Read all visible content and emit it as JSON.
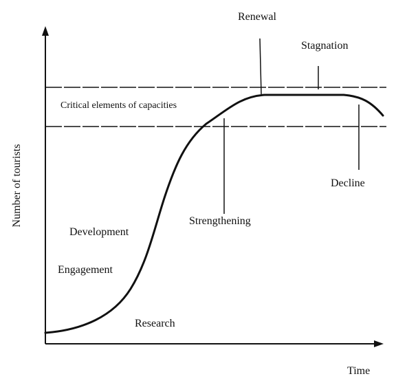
{
  "axes": {
    "y_label": "Number of tourists",
    "x_label": "Time"
  },
  "capacity_band": {
    "label": "Critical elements of capacities"
  },
  "stages": {
    "research": "Research",
    "engagement": "Engagement",
    "development": "Development",
    "strengthening": "Strengthening",
    "renewal": "Renewal",
    "stagnation": "Stagnation",
    "decline": "Decline"
  },
  "colors": {
    "ink": "#111111",
    "background": "#ffffff"
  }
}
